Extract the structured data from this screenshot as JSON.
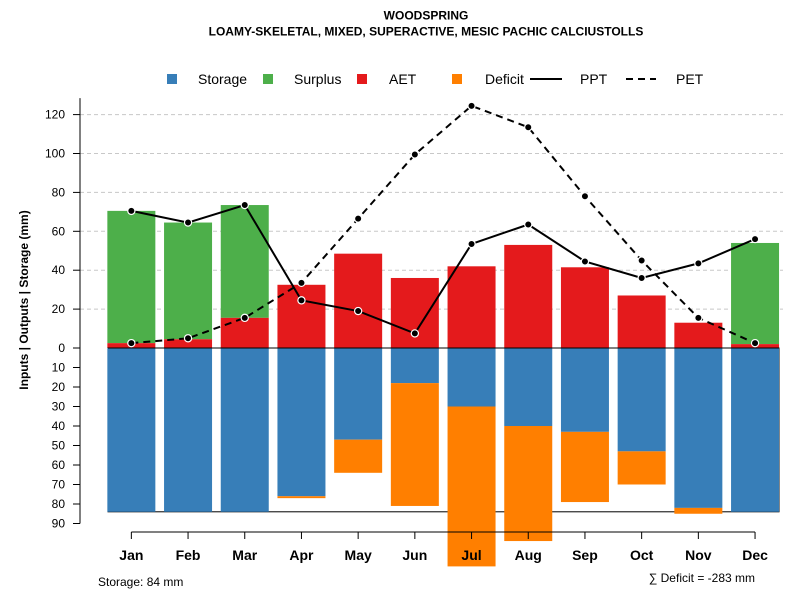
{
  "chart_data": {
    "type": "bar",
    "title": "WOODSPRING",
    "subtitle": "LOAMY-SKELETAL, MIXED, SUPERACTIVE, MESIC PACHIC CALCIUSTOLLS",
    "ylabel": "Inputs | Outputs | Storage    (mm)",
    "ylim_top": [
      0,
      130
    ],
    "ylim_bottom": [
      90,
      0
    ],
    "yticks_top": [
      "0",
      "20",
      "40",
      "60",
      "80",
      "100",
      "120"
    ],
    "yticks_bottom": [
      "10",
      "20",
      "30",
      "40",
      "50",
      "60",
      "70",
      "80",
      "90"
    ],
    "categories": [
      "Jan",
      "Feb",
      "Mar",
      "Apr",
      "May",
      "Jun",
      "Jul",
      "Aug",
      "Sep",
      "Oct",
      "Nov",
      "Dec"
    ],
    "highlight_category": "Jul",
    "series": [
      {
        "name": "Storage",
        "color": "#377EB8",
        "values": [
          84,
          84,
          84,
          76,
          47,
          18,
          30,
          40,
          43,
          53,
          82,
          84
        ]
      },
      {
        "name": "Surplus",
        "color": "#4DAF4A",
        "values": [
          68,
          60,
          58,
          0,
          0,
          0,
          0,
          0,
          0,
          0,
          0,
          52
        ]
      },
      {
        "name": "AET",
        "color": "#E41A1C",
        "values": [
          2.5,
          4.5,
          15.5,
          32.5,
          48.5,
          36,
          42,
          53,
          41.5,
          27,
          13,
          2
        ]
      },
      {
        "name": "Deficit",
        "color": "#FF7F00",
        "values": [
          0,
          0,
          0,
          1,
          17,
          63,
          82,
          59,
          36,
          17,
          3,
          0
        ]
      },
      {
        "name": "PPT",
        "color": "#000000",
        "values": [
          70.5,
          64.5,
          73.5,
          24.5,
          19,
          7.5,
          53.5,
          63.5,
          44.5,
          36,
          43.5,
          56
        ]
      },
      {
        "name": "PET",
        "color": "#000000",
        "values": [
          2.5,
          5,
          15.5,
          33.5,
          66.5,
          99.5,
          124.5,
          113.5,
          78,
          45,
          15.5,
          2.5
        ]
      }
    ],
    "legend": [
      {
        "label": "Storage",
        "kind": "square",
        "color": "#377EB8"
      },
      {
        "label": "Surplus",
        "kind": "square",
        "color": "#4DAF4A"
      },
      {
        "label": "AET",
        "kind": "square",
        "color": "#E41A1C"
      },
      {
        "label": "Deficit",
        "kind": "square",
        "color": "#FF7F00"
      },
      {
        "label": "PPT",
        "kind": "solid-line",
        "color": "#000000"
      },
      {
        "label": "PET",
        "kind": "dashed-line",
        "color": "#000000"
      }
    ],
    "legend_position": "top",
    "storage_capacity": 84,
    "storage_note": "Storage: 84 mm",
    "deficit_note": "∑ Deficit = -283 mm"
  }
}
